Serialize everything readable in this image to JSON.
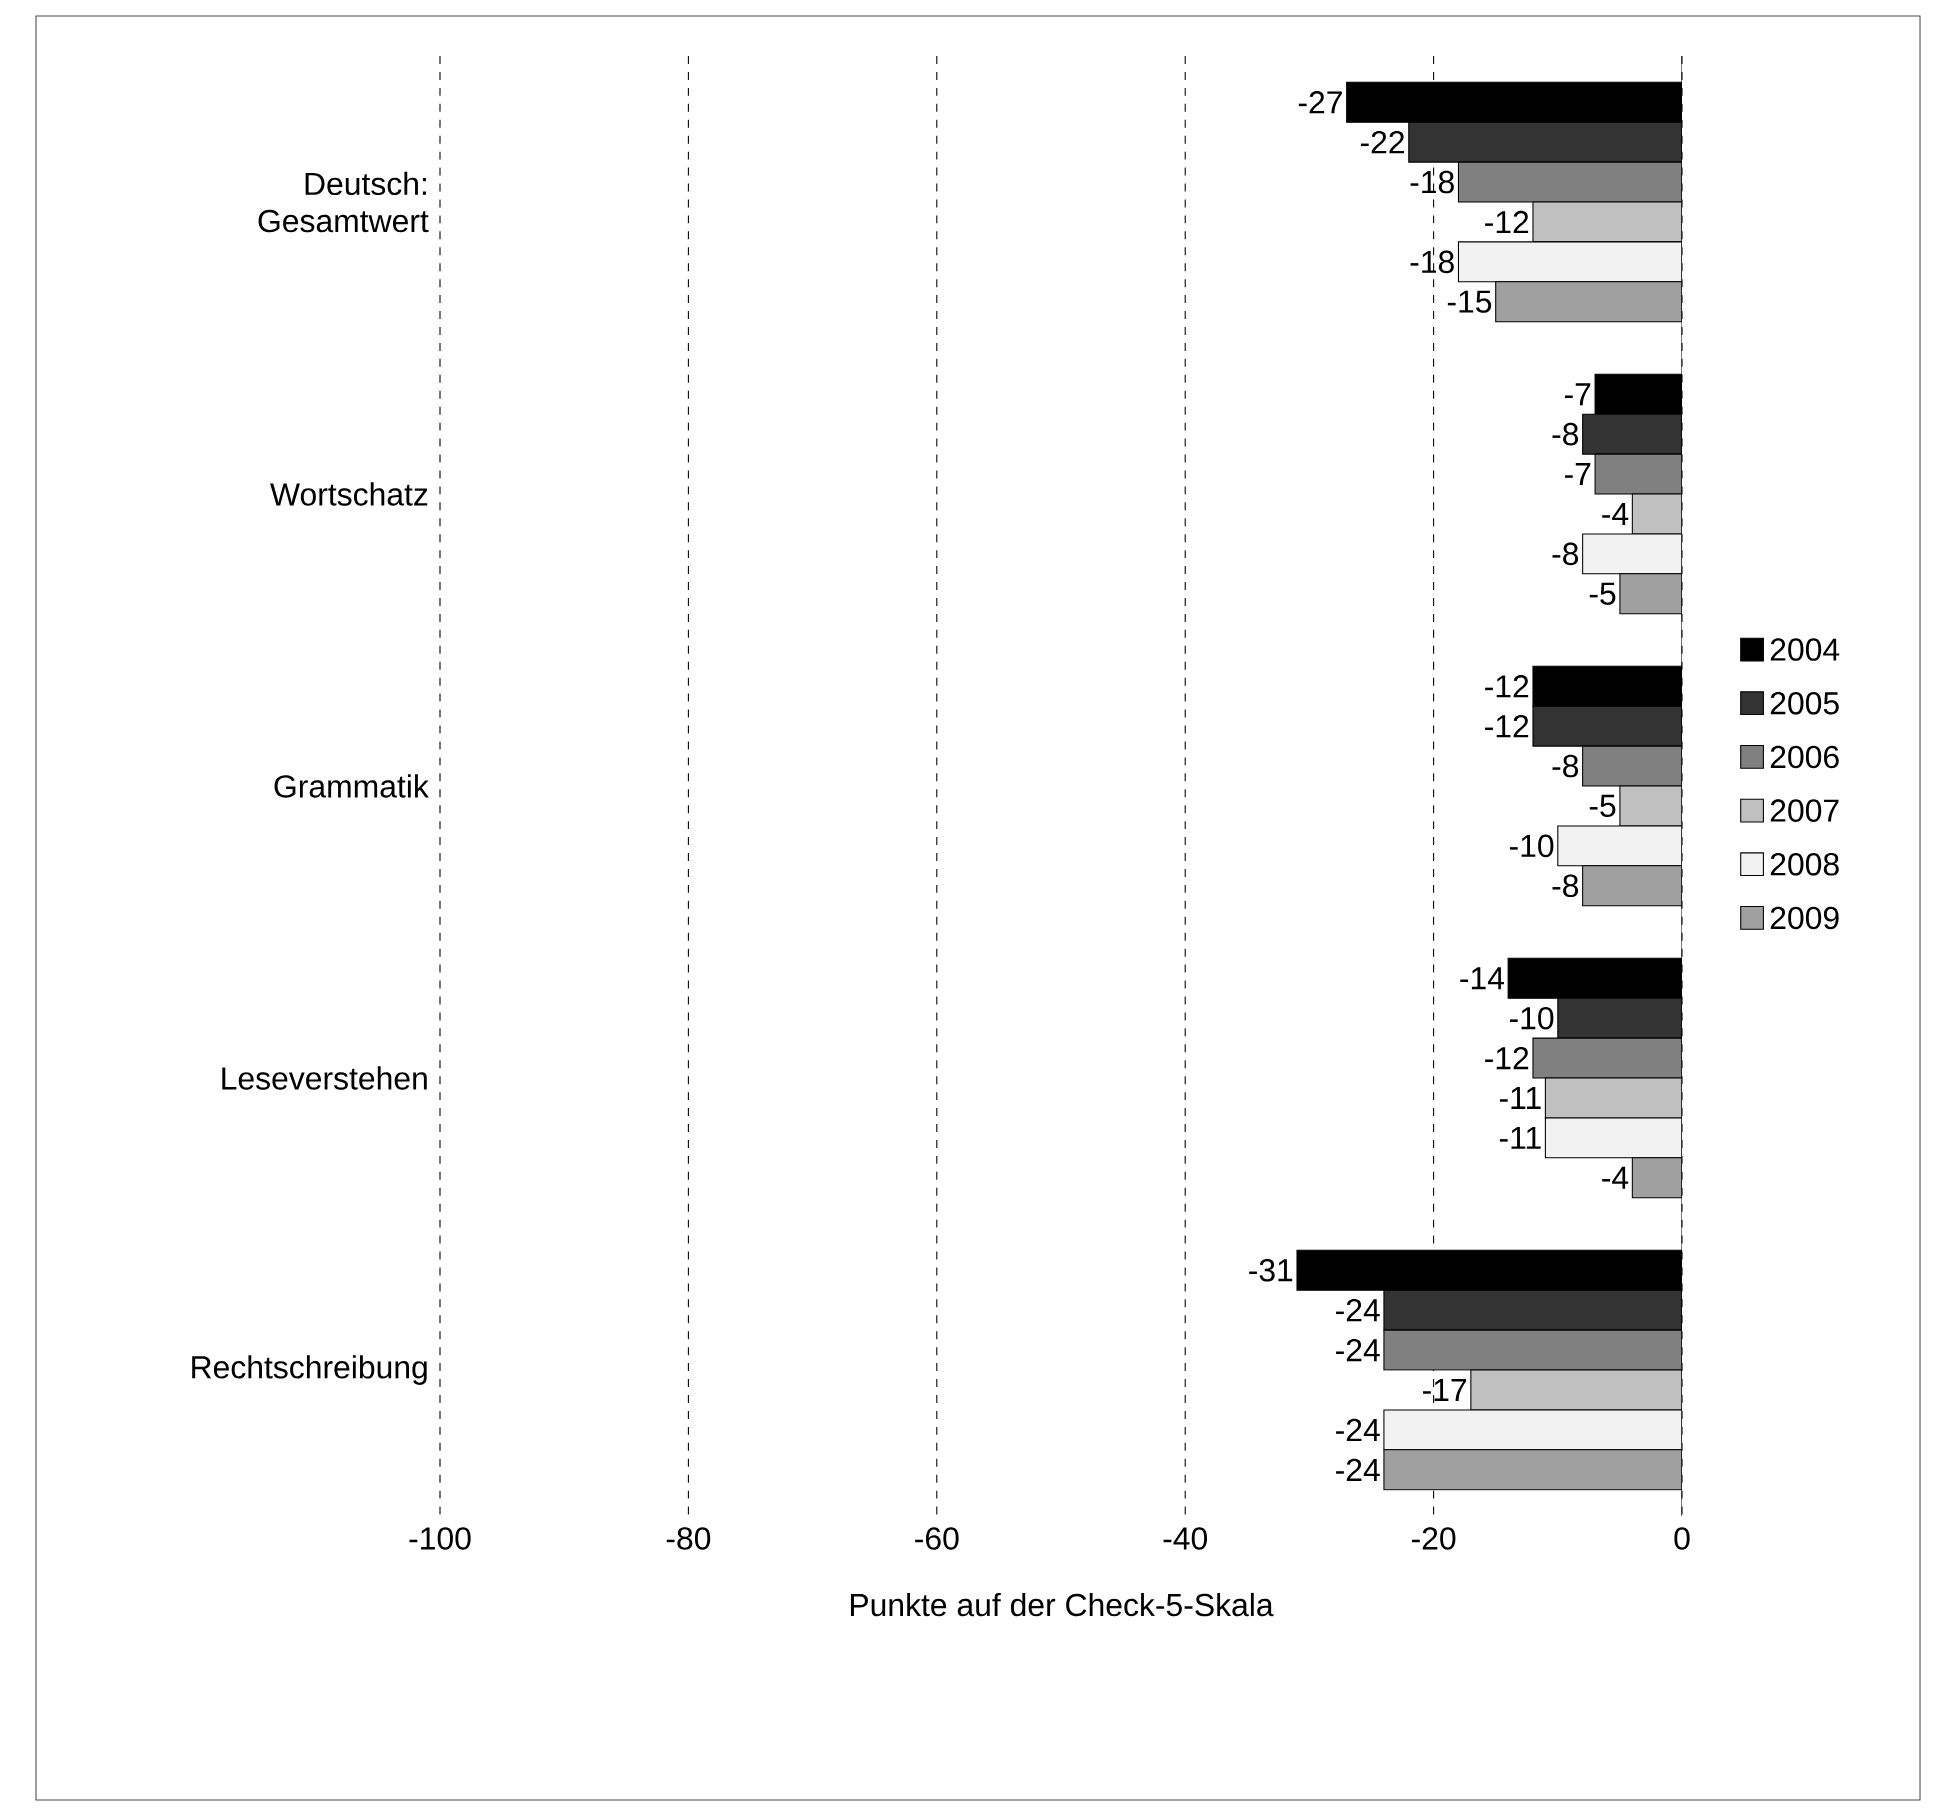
{
  "chart_data": {
    "type": "bar",
    "orientation": "horizontal",
    "categories": [
      "Deutsch: Gesamtwert",
      "Wortschatz",
      "Grammatik",
      "Leseverstehen",
      "Rechtschreibung"
    ],
    "series": [
      {
        "name": "2004",
        "color": "#000000",
        "values": [
          -27,
          -7,
          -12,
          -14,
          -31
        ]
      },
      {
        "name": "2005",
        "color": "#333333",
        "values": [
          -22,
          -8,
          -12,
          -10,
          -24
        ]
      },
      {
        "name": "2006",
        "color": "#808080",
        "values": [
          -18,
          -7,
          -8,
          -12,
          -24
        ]
      },
      {
        "name": "2007",
        "color": "#c0c0c0",
        "values": [
          -12,
          -4,
          -5,
          -11,
          -17
        ]
      },
      {
        "name": "2008",
        "color": "#f2f2f2",
        "values": [
          -18,
          -8,
          -10,
          -11,
          -24
        ]
      },
      {
        "name": "2009",
        "color": "#a0a0a0",
        "values": [
          -15,
          -5,
          -8,
          -4,
          -24
        ]
      }
    ],
    "xlabel": "Punkte auf der Check-5-Skala",
    "xlim": [
      -100,
      0
    ],
    "xticks": [
      -100,
      -80,
      -60,
      -40,
      -20,
      0
    ],
    "grid": "x",
    "legend": "right",
    "data_labels": true
  }
}
